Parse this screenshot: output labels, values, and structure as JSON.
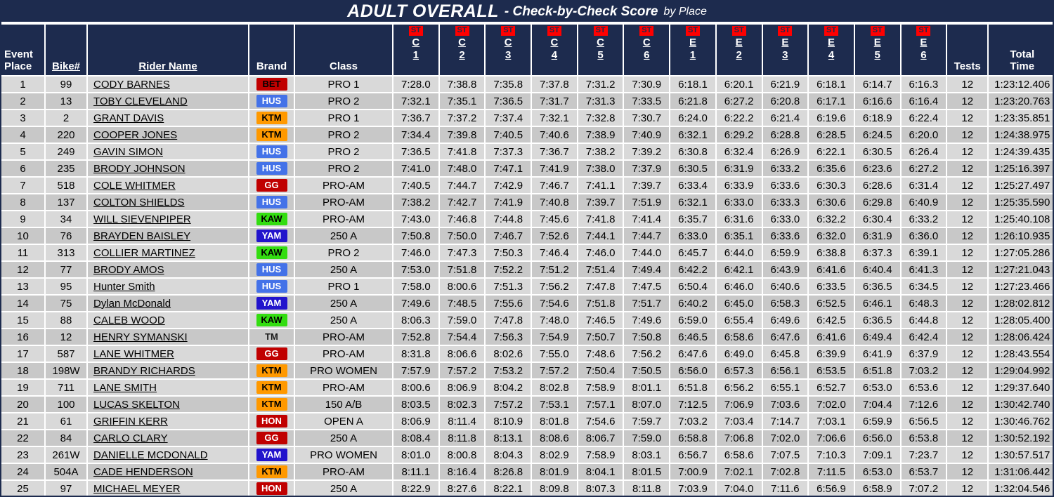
{
  "header": {
    "title_main": "ADULT OVERALL",
    "title_sub": "- Check-by-Check Score",
    "title_suffix": "by Place"
  },
  "colors": {
    "header_bg": "#1d2b4e",
    "st_badge_bg": "#ff0000",
    "stripe_light": "#d9d9d9",
    "stripe_dark": "#c8c8c8"
  },
  "brand_colors": {
    "BET": {
      "bg": "#c00000",
      "fg": "#000000"
    },
    "HUS": {
      "bg": "#4472e8",
      "fg": "#ffffff"
    },
    "KTM": {
      "bg": "#ff9900",
      "fg": "#000000"
    },
    "GG": {
      "bg": "#c00000",
      "fg": "#ffffff"
    },
    "KAW": {
      "bg": "#33dd11",
      "fg": "#000000"
    },
    "YAM": {
      "bg": "#2214cc",
      "fg": "#ffffff"
    },
    "HON": {
      "bg": "#c00000",
      "fg": "#ffffff"
    },
    "TM": {
      "bg": "",
      "fg": "#1a1a1a"
    }
  },
  "columns": {
    "event_line1": "Event",
    "event_line2": "Place",
    "bike": "Bike#",
    "rider": "Rider Name",
    "brand": "Brand",
    "class": "Class",
    "tests": "Tests",
    "total_line1": "Total",
    "total_line2": "Time",
    "checks": [
      {
        "badge": "ST",
        "letter": "C",
        "number": "1"
      },
      {
        "badge": "ST",
        "letter": "C",
        "number": "2"
      },
      {
        "badge": "ST",
        "letter": "C",
        "number": "3"
      },
      {
        "badge": "ST",
        "letter": "C",
        "number": "4"
      },
      {
        "badge": "ST",
        "letter": "C",
        "number": "5"
      },
      {
        "badge": "ST",
        "letter": "C",
        "number": "6"
      },
      {
        "badge": "ST",
        "letter": "E",
        "number": "1"
      },
      {
        "badge": "ST",
        "letter": "E",
        "number": "2"
      },
      {
        "badge": "ST",
        "letter": "E",
        "number": "3"
      },
      {
        "badge": "ST",
        "letter": "E",
        "number": "4"
      },
      {
        "badge": "ST",
        "letter": "E",
        "number": "5"
      },
      {
        "badge": "ST",
        "letter": "E",
        "number": "6"
      }
    ]
  },
  "rows": [
    {
      "place": "1",
      "bike": "99",
      "name": "CODY BARNES",
      "brand": "BET",
      "cls": "PRO 1",
      "times": [
        "7:28.0",
        "7:38.8",
        "7:35.8",
        "7:37.8",
        "7:31.2",
        "7:30.9",
        "6:18.1",
        "6:20.1",
        "6:21.9",
        "6:18.1",
        "6:14.7",
        "6:16.3"
      ],
      "tests": "12",
      "total": "1:23:12.406"
    },
    {
      "place": "2",
      "bike": "13",
      "name": "TOBY CLEVELAND",
      "brand": "HUS",
      "cls": "PRO 2",
      "times": [
        "7:32.1",
        "7:35.1",
        "7:36.5",
        "7:31.7",
        "7:31.3",
        "7:33.5",
        "6:21.8",
        "6:27.2",
        "6:20.8",
        "6:17.1",
        "6:16.6",
        "6:16.4"
      ],
      "tests": "12",
      "total": "1:23:20.763"
    },
    {
      "place": "3",
      "bike": "2",
      "name": "GRANT DAVIS",
      "brand": "KTM",
      "cls": "PRO 1",
      "times": [
        "7:36.7",
        "7:37.2",
        "7:37.4",
        "7:32.1",
        "7:32.8",
        "7:30.7",
        "6:24.0",
        "6:22.2",
        "6:21.4",
        "6:19.6",
        "6:18.9",
        "6:22.4"
      ],
      "tests": "12",
      "total": "1:23:35.851"
    },
    {
      "place": "4",
      "bike": "220",
      "name": "COOPER JONES",
      "brand": "KTM",
      "cls": "PRO 2",
      "times": [
        "7:34.4",
        "7:39.8",
        "7:40.5",
        "7:40.6",
        "7:38.9",
        "7:40.9",
        "6:32.1",
        "6:29.2",
        "6:28.8",
        "6:28.5",
        "6:24.5",
        "6:20.0"
      ],
      "tests": "12",
      "total": "1:24:38.975"
    },
    {
      "place": "5",
      "bike": "249",
      "name": "GAVIN SIMON",
      "brand": "HUS",
      "cls": "PRO 2",
      "times": [
        "7:36.5",
        "7:41.8",
        "7:37.3",
        "7:36.7",
        "7:38.2",
        "7:39.2",
        "6:30.8",
        "6:32.4",
        "6:26.9",
        "6:22.1",
        "6:30.5",
        "6:26.4"
      ],
      "tests": "12",
      "total": "1:24:39.435"
    },
    {
      "place": "6",
      "bike": "235",
      "name": "BRODY JOHNSON",
      "brand": "HUS",
      "cls": "PRO 2",
      "times": [
        "7:41.0",
        "7:48.0",
        "7:47.1",
        "7:41.9",
        "7:38.0",
        "7:37.9",
        "6:30.5",
        "6:31.9",
        "6:33.2",
        "6:35.6",
        "6:23.6",
        "6:27.2"
      ],
      "tests": "12",
      "total": "1:25:16.397"
    },
    {
      "place": "7",
      "bike": "518",
      "name": "COLE WHITMER",
      "brand": "GG",
      "cls": "PRO-AM",
      "times": [
        "7:40.5",
        "7:44.7",
        "7:42.9",
        "7:46.7",
        "7:41.1",
        "7:39.7",
        "6:33.4",
        "6:33.9",
        "6:33.6",
        "6:30.3",
        "6:28.6",
        "6:31.4"
      ],
      "tests": "12",
      "total": "1:25:27.497"
    },
    {
      "place": "8",
      "bike": "137",
      "name": "COLTON SHIELDS",
      "brand": "HUS",
      "cls": "PRO-AM",
      "times": [
        "7:38.2",
        "7:42.7",
        "7:41.9",
        "7:40.8",
        "7:39.7",
        "7:51.9",
        "6:32.1",
        "6:33.0",
        "6:33.3",
        "6:30.6",
        "6:29.8",
        "6:40.9"
      ],
      "tests": "12",
      "total": "1:25:35.590"
    },
    {
      "place": "9",
      "bike": "34",
      "name": "WILL SIEVENPIPER",
      "brand": "KAW",
      "cls": "PRO-AM",
      "times": [
        "7:43.0",
        "7:46.8",
        "7:44.8",
        "7:45.6",
        "7:41.8",
        "7:41.4",
        "6:35.7",
        "6:31.6",
        "6:33.0",
        "6:32.2",
        "6:30.4",
        "6:33.2"
      ],
      "tests": "12",
      "total": "1:25:40.108"
    },
    {
      "place": "10",
      "bike": "76",
      "name": "BRAYDEN BAISLEY",
      "brand": "YAM",
      "cls": "250 A",
      "times": [
        "7:50.8",
        "7:50.0",
        "7:46.7",
        "7:52.6",
        "7:44.1",
        "7:44.7",
        "6:33.0",
        "6:35.1",
        "6:33.6",
        "6:32.0",
        "6:31.9",
        "6:36.0"
      ],
      "tests": "12",
      "total": "1:26:10.935"
    },
    {
      "place": "11",
      "bike": "313",
      "name": "COLLIER MARTINEZ",
      "brand": "KAW",
      "cls": "PRO 2",
      "times": [
        "7:46.0",
        "7:47.3",
        "7:50.3",
        "7:46.4",
        "7:46.0",
        "7:44.0",
        "6:45.7",
        "6:44.0",
        "6:59.9",
        "6:38.8",
        "6:37.3",
        "6:39.1"
      ],
      "tests": "12",
      "total": "1:27:05.286"
    },
    {
      "place": "12",
      "bike": "77",
      "name": "BRODY AMOS",
      "brand": "HUS",
      "cls": "250 A",
      "times": [
        "7:53.0",
        "7:51.8",
        "7:52.2",
        "7:51.2",
        "7:51.4",
        "7:49.4",
        "6:42.2",
        "6:42.1",
        "6:43.9",
        "6:41.6",
        "6:40.4",
        "6:41.3"
      ],
      "tests": "12",
      "total": "1:27:21.043"
    },
    {
      "place": "13",
      "bike": "95",
      "name": "Hunter Smith",
      "brand": "HUS",
      "cls": "PRO 1",
      "times": [
        "7:58.0",
        "8:00.6",
        "7:51.3",
        "7:56.2",
        "7:47.8",
        "7:47.5",
        "6:50.4",
        "6:46.0",
        "6:40.6",
        "6:33.5",
        "6:36.5",
        "6:34.5"
      ],
      "tests": "12",
      "total": "1:27:23.466"
    },
    {
      "place": "14",
      "bike": "75",
      "name": "Dylan McDonald",
      "brand": "YAM",
      "cls": "250 A",
      "times": [
        "7:49.6",
        "7:48.5",
        "7:55.6",
        "7:54.6",
        "7:51.8",
        "7:51.7",
        "6:40.2",
        "6:45.0",
        "6:58.3",
        "6:52.5",
        "6:46.1",
        "6:48.3"
      ],
      "tests": "12",
      "total": "1:28:02.812"
    },
    {
      "place": "15",
      "bike": "88",
      "name": "CALEB WOOD",
      "brand": "KAW",
      "cls": "250 A",
      "times": [
        "8:06.3",
        "7:59.0",
        "7:47.8",
        "7:48.0",
        "7:46.5",
        "7:49.6",
        "6:59.0",
        "6:55.4",
        "6:49.6",
        "6:42.5",
        "6:36.5",
        "6:44.8"
      ],
      "tests": "12",
      "total": "1:28:05.400"
    },
    {
      "place": "16",
      "bike": "12",
      "name": "HENRY SYMANSKI",
      "brand": "TM",
      "cls": "PRO-AM",
      "times": [
        "7:52.8",
        "7:54.4",
        "7:56.3",
        "7:54.9",
        "7:50.7",
        "7:50.8",
        "6:46.5",
        "6:58.6",
        "6:47.6",
        "6:41.6",
        "6:49.4",
        "6:42.4"
      ],
      "tests": "12",
      "total": "1:28:06.424"
    },
    {
      "place": "17",
      "bike": "587",
      "name": "LANE WHITMER",
      "brand": "GG",
      "cls": "PRO-AM",
      "times": [
        "8:31.8",
        "8:06.6",
        "8:02.6",
        "7:55.0",
        "7:48.6",
        "7:56.2",
        "6:47.6",
        "6:49.0",
        "6:45.8",
        "6:39.9",
        "6:41.9",
        "6:37.9"
      ],
      "tests": "12",
      "total": "1:28:43.554"
    },
    {
      "place": "18",
      "bike": "198W",
      "name": "BRANDY RICHARDS",
      "brand": "KTM",
      "cls": "PRO WOMEN",
      "times": [
        "7:57.9",
        "7:57.2",
        "7:53.2",
        "7:57.2",
        "7:50.4",
        "7:50.5",
        "6:56.0",
        "6:57.3",
        "6:56.1",
        "6:53.5",
        "6:51.8",
        "7:03.2"
      ],
      "tests": "12",
      "total": "1:29:04.992"
    },
    {
      "place": "19",
      "bike": "711",
      "name": "LANE SMITH",
      "brand": "KTM",
      "cls": "PRO-AM",
      "times": [
        "8:00.6",
        "8:06.9",
        "8:04.2",
        "8:02.8",
        "7:58.9",
        "8:01.1",
        "6:51.8",
        "6:56.2",
        "6:55.1",
        "6:52.7",
        "6:53.0",
        "6:53.6"
      ],
      "tests": "12",
      "total": "1:29:37.640"
    },
    {
      "place": "20",
      "bike": "100",
      "name": "LUCAS SKELTON",
      "brand": "KTM",
      "cls": "150 A/B",
      "times": [
        "8:03.5",
        "8:02.3",
        "7:57.2",
        "7:53.1",
        "7:57.1",
        "8:07.0",
        "7:12.5",
        "7:06.9",
        "7:03.6",
        "7:02.0",
        "7:04.4",
        "7:12.6"
      ],
      "tests": "12",
      "total": "1:30:42.740"
    },
    {
      "place": "21",
      "bike": "61",
      "name": "GRIFFIN KERR",
      "brand": "HON",
      "cls": "OPEN A",
      "times": [
        "8:06.9",
        "8:11.4",
        "8:10.9",
        "8:01.8",
        "7:54.6",
        "7:59.7",
        "7:03.2",
        "7:03.4",
        "7:14.7",
        "7:03.1",
        "6:59.9",
        "6:56.5"
      ],
      "tests": "12",
      "total": "1:30:46.762"
    },
    {
      "place": "22",
      "bike": "84",
      "name": "CARLO CLARY",
      "brand": "GG",
      "cls": "250 A",
      "times": [
        "8:08.4",
        "8:11.8",
        "8:13.1",
        "8:08.6",
        "8:06.7",
        "7:59.0",
        "6:58.8",
        "7:06.8",
        "7:02.0",
        "7:06.6",
        "6:56.0",
        "6:53.8"
      ],
      "tests": "12",
      "total": "1:30:52.192"
    },
    {
      "place": "23",
      "bike": "261W",
      "name": "DANIELLE MCDONALD",
      "brand": "YAM",
      "cls": "PRO WOMEN",
      "times": [
        "8:01.0",
        "8:00.8",
        "8:04.3",
        "8:02.9",
        "7:58.9",
        "8:03.1",
        "6:56.7",
        "6:58.6",
        "7:07.5",
        "7:10.3",
        "7:09.1",
        "7:23.7"
      ],
      "tests": "12",
      "total": "1:30:57.517"
    },
    {
      "place": "24",
      "bike": "504A",
      "name": "CADE HENDERSON",
      "brand": "KTM",
      "cls": "PRO-AM",
      "times": [
        "8:11.1",
        "8:16.4",
        "8:26.8",
        "8:01.9",
        "8:04.1",
        "8:01.5",
        "7:00.9",
        "7:02.1",
        "7:02.8",
        "7:11.5",
        "6:53.0",
        "6:53.7"
      ],
      "tests": "12",
      "total": "1:31:06.442"
    },
    {
      "place": "25",
      "bike": "97",
      "name": "MICHAEL MEYER",
      "brand": "HON",
      "cls": "250 A",
      "times": [
        "8:22.9",
        "8:27.6",
        "8:22.1",
        "8:09.8",
        "8:07.3",
        "8:11.8",
        "7:03.9",
        "7:04.0",
        "7:11.6",
        "6:56.9",
        "6:58.9",
        "7:07.2"
      ],
      "tests": "12",
      "total": "1:32:04.546"
    }
  ]
}
